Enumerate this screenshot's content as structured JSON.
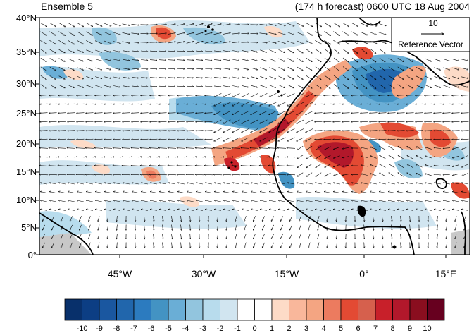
{
  "title_left": "Ensemble 5",
  "title_right": "(174 h forecast) 0600 UTC 18 Aug 2004",
  "reference_vector": {
    "magnitude": "10",
    "label": "Reference Vector"
  },
  "lat_labels": [
    "40°N",
    "35°N",
    "30°N",
    "25°N",
    "20°N",
    "15°N",
    "10°N",
    "5°N",
    "0°"
  ],
  "lon_labels": [
    "45°W",
    "30°W",
    "15°W",
    "0°",
    "15°E"
  ],
  "colorbar": {
    "labels": [
      "-10",
      "-9",
      "-8",
      "-7",
      "-6",
      "-5",
      "-4",
      "-3",
      "-2",
      "-1",
      "0",
      "1",
      "2",
      "3",
      "4",
      "5",
      "6",
      "7",
      "8",
      "9",
      "10"
    ],
    "colors": [
      "#08306b",
      "#0c3e84",
      "#1a57a0",
      "#2166ac",
      "#2c7bbf",
      "#4393c3",
      "#6aaed6",
      "#92c5de",
      "#b8dced",
      "#d1e5f0",
      "#ffffff",
      "#ffffff",
      "#fddbc7",
      "#f9b79b",
      "#f4a582",
      "#ec7b5f",
      "#e34a33",
      "#d6604d",
      "#c8202a",
      "#b2182b",
      "#8a0e1f",
      "#67001f"
    ]
  }
}
